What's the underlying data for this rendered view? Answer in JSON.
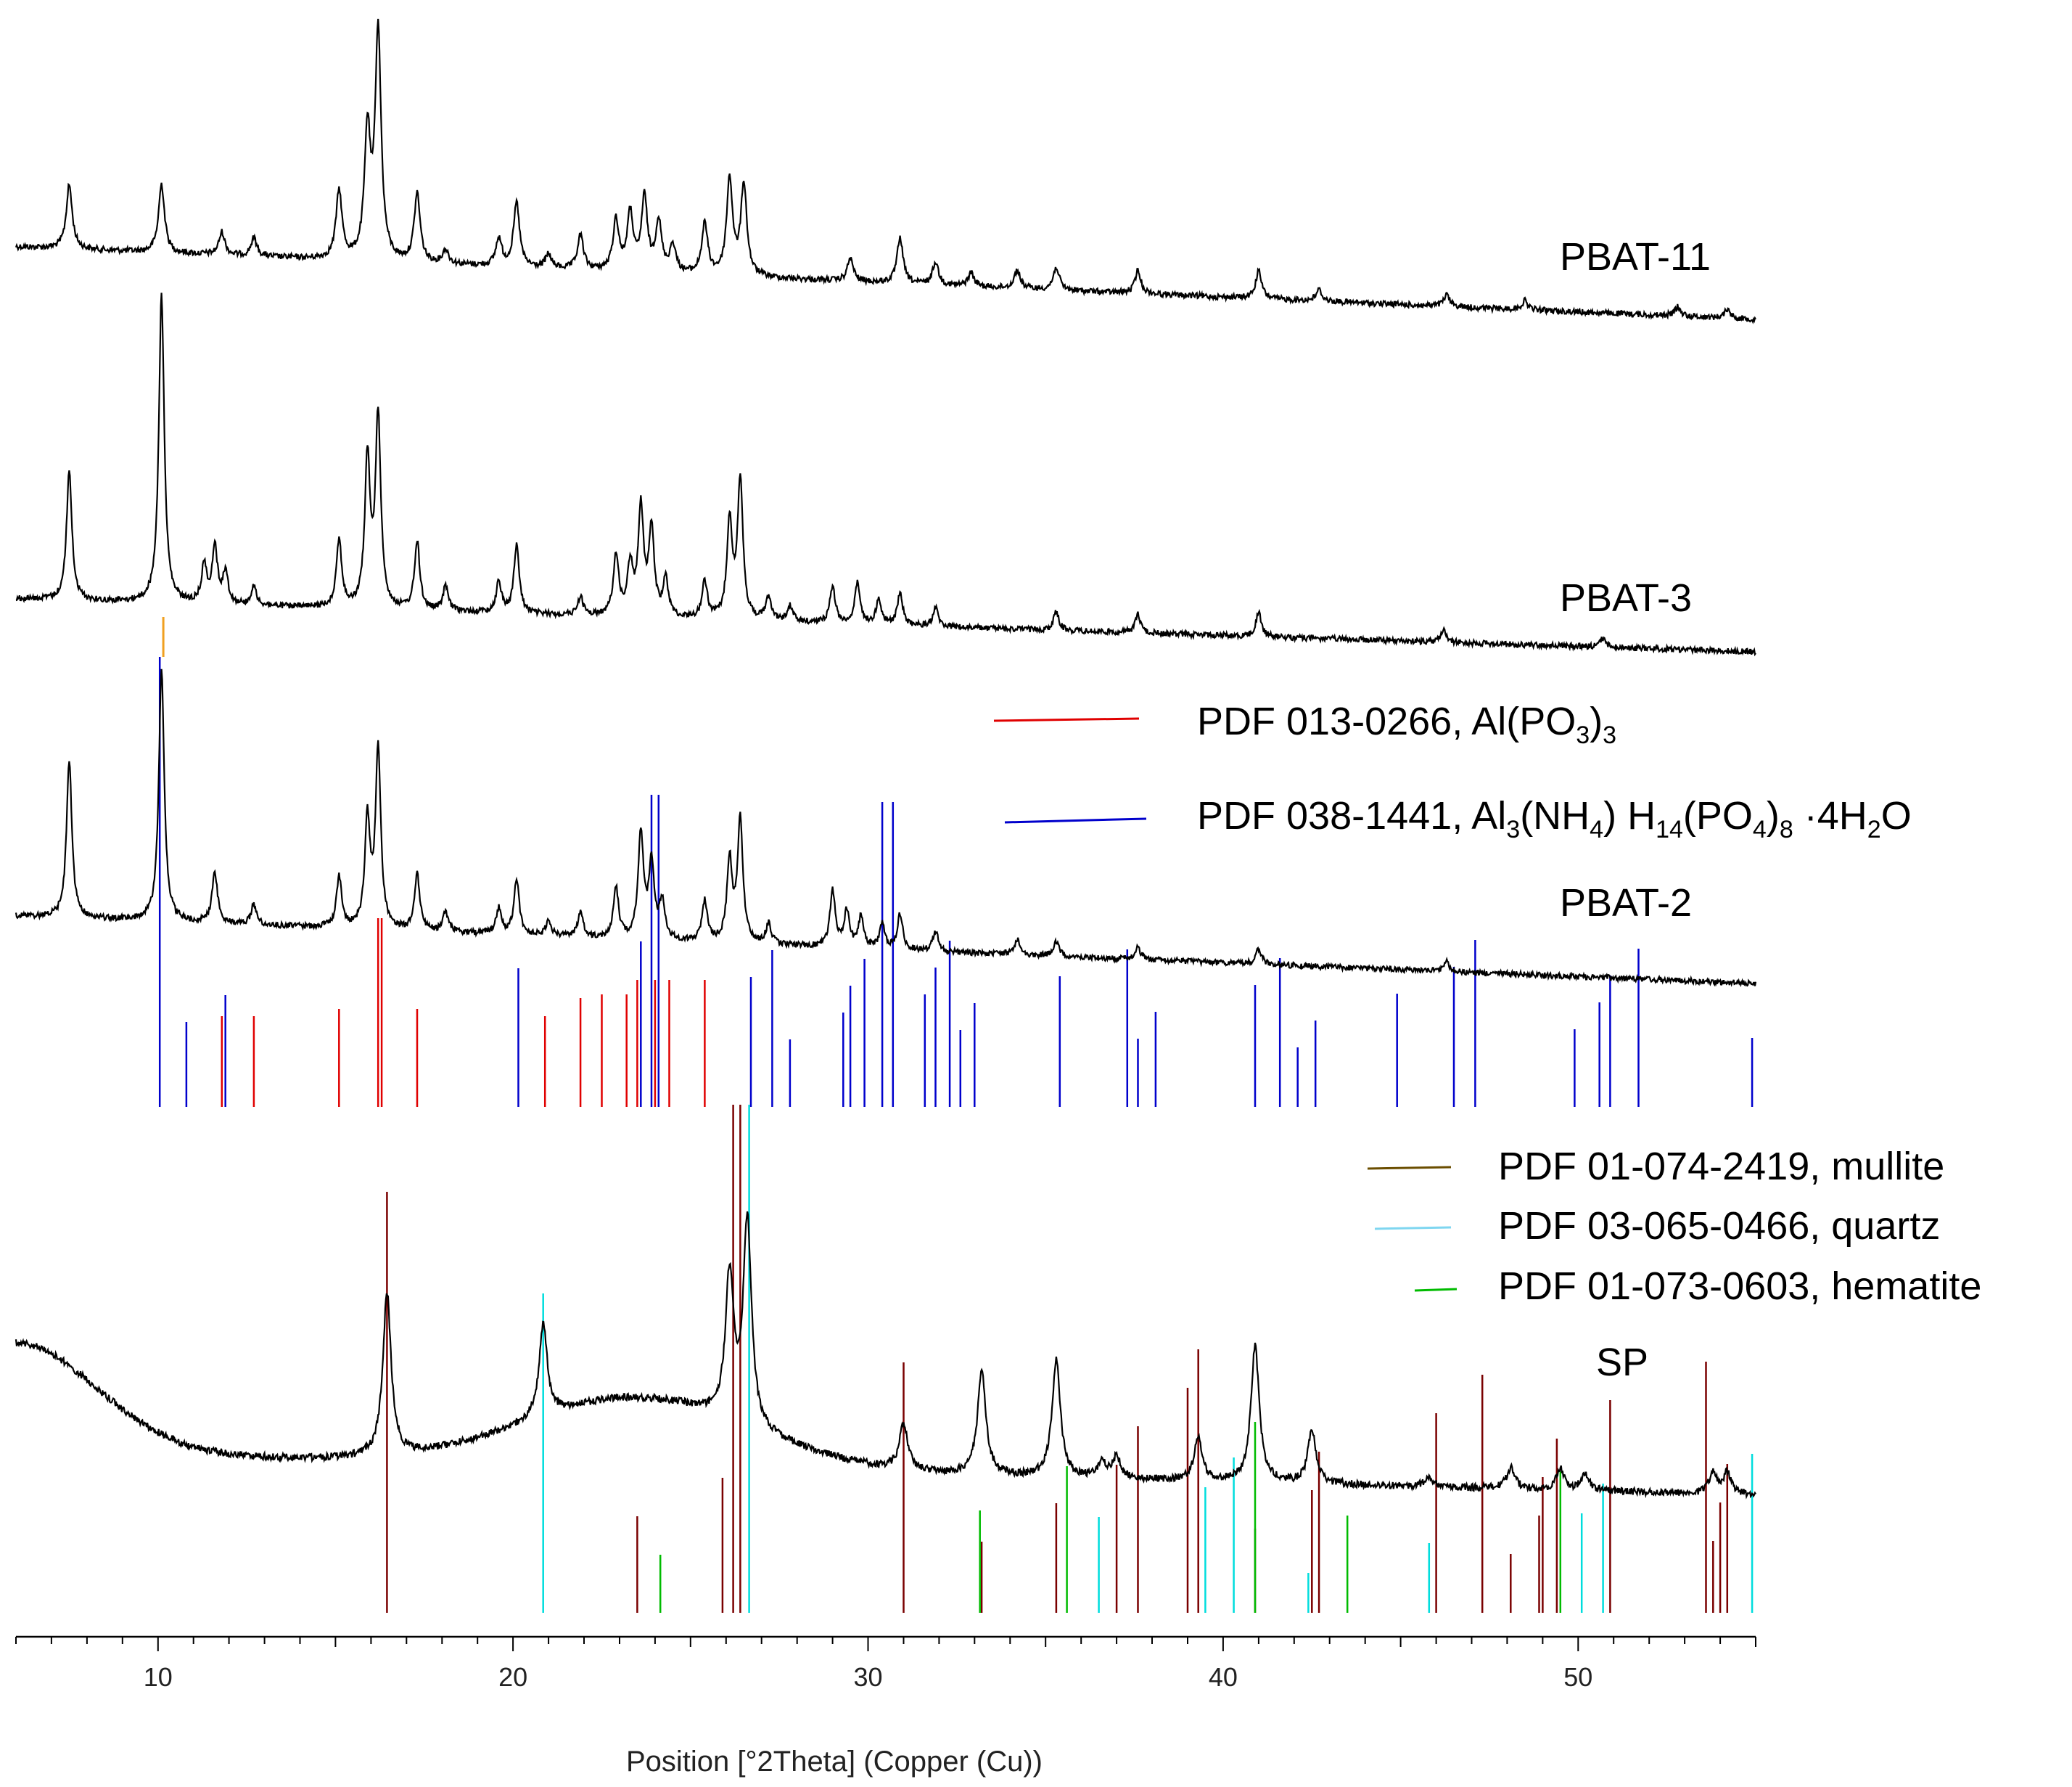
{
  "chart_data": {
    "type": "line",
    "xlabel": "Position [°2Theta] (Copper (Cu))",
    "ylabel": "",
    "xlim": [
      6,
      55
    ],
    "xticks": [
      10,
      20,
      30,
      40,
      50
    ],
    "xtick_labels": [
      "10",
      "20",
      "30",
      "40",
      "50"
    ],
    "grid": false,
    "series": [
      {
        "name": "PBAT-11",
        "color": "#000000",
        "peaks": [
          [
            7.5,
            0.28
          ],
          [
            10.1,
            0.3
          ],
          [
            11.8,
            0.1
          ],
          [
            12.7,
            0.08
          ],
          [
            15.1,
            0.3
          ],
          [
            15.9,
            0.55
          ],
          [
            16.2,
            1.0
          ],
          [
            17.3,
            0.3
          ],
          [
            18.1,
            0.06
          ],
          [
            19.6,
            0.12
          ],
          [
            20.1,
            0.28
          ],
          [
            21.0,
            0.06
          ],
          [
            21.9,
            0.15
          ],
          [
            22.9,
            0.22
          ],
          [
            23.3,
            0.25
          ],
          [
            23.7,
            0.32
          ],
          [
            24.1,
            0.22
          ],
          [
            24.5,
            0.12
          ],
          [
            25.4,
            0.22
          ],
          [
            26.1,
            0.42
          ],
          [
            26.5,
            0.4
          ],
          [
            29.5,
            0.1
          ],
          [
            30.9,
            0.2
          ],
          [
            31.9,
            0.1
          ],
          [
            32.9,
            0.06
          ],
          [
            34.2,
            0.08
          ],
          [
            35.3,
            0.1
          ],
          [
            37.6,
            0.1
          ],
          [
            41.0,
            0.12
          ],
          [
            42.7,
            0.05
          ],
          [
            46.3,
            0.05
          ],
          [
            48.5,
            0.04
          ],
          [
            52.8,
            0.04
          ],
          [
            54.2,
            0.04
          ]
        ]
      },
      {
        "name": "PBAT-3",
        "color": "#000000",
        "peaks": [
          [
            7.5,
            0.42
          ],
          [
            10.1,
            1.0
          ],
          [
            11.3,
            0.12
          ],
          [
            11.6,
            0.18
          ],
          [
            11.9,
            0.1
          ],
          [
            12.7,
            0.06
          ],
          [
            15.1,
            0.22
          ],
          [
            15.9,
            0.48
          ],
          [
            16.2,
            0.62
          ],
          [
            17.3,
            0.22
          ],
          [
            18.1,
            0.08
          ],
          [
            19.6,
            0.1
          ],
          [
            20.1,
            0.22
          ],
          [
            21.9,
            0.06
          ],
          [
            22.9,
            0.2
          ],
          [
            23.3,
            0.16
          ],
          [
            23.6,
            0.35
          ],
          [
            23.9,
            0.28
          ],
          [
            24.3,
            0.12
          ],
          [
            25.4,
            0.12
          ],
          [
            26.1,
            0.32
          ],
          [
            26.4,
            0.45
          ],
          [
            27.2,
            0.08
          ],
          [
            27.8,
            0.05
          ],
          [
            29.0,
            0.12
          ],
          [
            29.7,
            0.13
          ],
          [
            30.3,
            0.08
          ],
          [
            30.9,
            0.1
          ],
          [
            31.9,
            0.06
          ],
          [
            35.3,
            0.06
          ],
          [
            37.6,
            0.06
          ],
          [
            41.0,
            0.08
          ],
          [
            46.2,
            0.04
          ],
          [
            50.7,
            0.03
          ]
        ]
      },
      {
        "name": "PBAT-2",
        "color": "#000000",
        "peaks": [
          [
            7.5,
            0.62
          ],
          [
            10.1,
            1.0
          ],
          [
            11.6,
            0.2
          ],
          [
            12.7,
            0.08
          ],
          [
            15.1,
            0.2
          ],
          [
            15.9,
            0.42
          ],
          [
            16.2,
            0.7
          ],
          [
            17.3,
            0.22
          ],
          [
            18.1,
            0.08
          ],
          [
            19.6,
            0.1
          ],
          [
            20.1,
            0.22
          ],
          [
            21.0,
            0.06
          ],
          [
            21.9,
            0.1
          ],
          [
            22.9,
            0.2
          ],
          [
            23.6,
            0.42
          ],
          [
            23.9,
            0.3
          ],
          [
            24.2,
            0.15
          ],
          [
            25.4,
            0.16
          ],
          [
            26.1,
            0.32
          ],
          [
            26.4,
            0.48
          ],
          [
            27.2,
            0.08
          ],
          [
            29.0,
            0.22
          ],
          [
            29.4,
            0.14
          ],
          [
            29.8,
            0.12
          ],
          [
            30.4,
            0.1
          ],
          [
            30.9,
            0.14
          ],
          [
            31.9,
            0.08
          ],
          [
            34.2,
            0.06
          ],
          [
            35.3,
            0.06
          ],
          [
            37.6,
            0.05
          ],
          [
            41.0,
            0.06
          ],
          [
            46.3,
            0.04
          ]
        ]
      },
      {
        "name": "SP",
        "color": "#000000",
        "peaks": [
          [
            16.45,
            0.62
          ],
          [
            20.85,
            0.35
          ],
          [
            26.1,
            0.55
          ],
          [
            26.6,
            0.78
          ],
          [
            31.0,
            0.18
          ],
          [
            33.2,
            0.4
          ],
          [
            35.3,
            0.45
          ],
          [
            36.6,
            0.06
          ],
          [
            37.0,
            0.08
          ],
          [
            39.3,
            0.16
          ],
          [
            40.9,
            0.52
          ],
          [
            42.5,
            0.2
          ],
          [
            45.8,
            0.04
          ],
          [
            48.1,
            0.08
          ],
          [
            49.5,
            0.08
          ],
          [
            50.2,
            0.06
          ],
          [
            53.8,
            0.08
          ],
          [
            54.2,
            0.08
          ]
        ]
      }
    ],
    "reference_patterns": [
      {
        "name": "PDF 013-0266, Al(PO3)3",
        "color": "#e00000",
        "positions": [
          11.8,
          12.7,
          15.1,
          16.2,
          16.3,
          17.3,
          20.9,
          21.9,
          22.5,
          23.2,
          23.5,
          24.0,
          24.4,
          25.4
        ]
      },
      {
        "name": "PDF 038-1441, Al3(NH4) H14(PO4)8 ·4H2O",
        "color": "#0000cc",
        "positions": [
          10.05,
          10.8,
          11.9,
          20.15,
          23.6,
          23.9,
          24.1,
          26.7,
          27.3,
          27.8,
          29.3,
          29.5,
          29.9,
          30.4,
          30.7,
          31.6,
          31.9,
          32.3,
          32.6,
          33.0,
          35.4,
          37.3,
          37.6,
          38.1,
          40.9,
          41.6,
          42.1,
          42.6,
          44.9,
          46.5,
          47.1,
          49.9,
          50.6,
          50.9,
          51.7,
          54.9
        ]
      },
      {
        "name": "PDF 01-074-2419, mullite",
        "color": "#7a0000",
        "positions": [
          16.45,
          23.5,
          25.9,
          26.2,
          26.4,
          31.0,
          33.2,
          35.3,
          37.0,
          37.6,
          39.0,
          39.3,
          40.9,
          42.5,
          42.7,
          46.0,
          47.3,
          48.1,
          48.9,
          49.0,
          49.4,
          50.9,
          53.6,
          53.8,
          54.0,
          54.2
        ]
      },
      {
        "name": "PDF 03-065-0466, quartz",
        "color": "#00dddd",
        "positions": [
          20.85,
          26.65,
          36.5,
          39.5,
          40.3,
          42.4,
          45.8,
          50.1,
          50.7,
          54.9
        ]
      },
      {
        "name": "PDF 01-073-0603, hematite",
        "color": "#00bb00",
        "positions": [
          24.15,
          33.15,
          35.6,
          40.9,
          43.5,
          49.5
        ]
      }
    ],
    "legend": {
      "group1": [
        {
          "text": "PDF 013-0266, Al(PO",
          "sub": "3",
          "tail": ")",
          "sub2": "3"
        },
        {
          "text": "PDF 038-1441, Al",
          "parts": [
            [
              "3",
              "(NH"
            ],
            [
              "4",
              ") H"
            ],
            [
              "14",
              "(PO"
            ],
            [
              "4",
              ")"
            ],
            [
              "8",
              " ·4H"
            ],
            [
              "2",
              "O"
            ]
          ]
        }
      ],
      "group2": [
        {
          "text": "PDF 01-074-2419, mullite"
        },
        {
          "text": "PDF 03-065-0466, quartz"
        },
        {
          "text": "PDF 01-073-0603, hematite"
        }
      ]
    }
  }
}
